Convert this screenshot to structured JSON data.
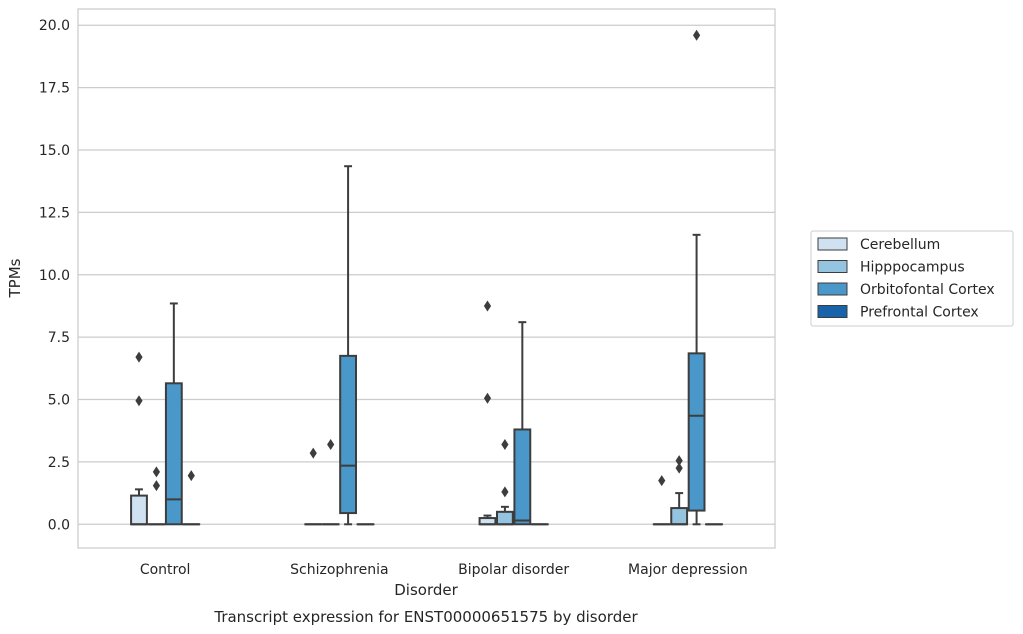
{
  "chart_data": {
    "type": "box",
    "title": "Transcript expression for ENST00000651575 by disorder",
    "xlabel": "Disorder",
    "ylabel": "TPMs",
    "ylim": [
      -0.95,
      20.65
    ],
    "yticks": [
      "0.0",
      "2.5",
      "5.0",
      "7.5",
      "10.0",
      "12.5",
      "15.0",
      "17.5",
      "20.0"
    ],
    "categories": [
      "Control",
      "Schizophrenia",
      "Bipolar disorder",
      "Major depression"
    ],
    "grid": "horizontal",
    "legend_position": "right",
    "series": [
      {
        "name": "Cerebellum",
        "color": "#d0e1f2",
        "boxes": [
          {
            "q1": 0.0,
            "median": 0.0,
            "q3": 1.15,
            "whislo": 0.0,
            "whishi": 1.4,
            "fliers": [
              6.7,
              4.95
            ]
          },
          {
            "q1": 0.0,
            "median": 0.0,
            "q3": 0.0,
            "whislo": 0.0,
            "whishi": 0.0,
            "fliers": [
              2.85
            ]
          },
          {
            "q1": 0.0,
            "median": 0.0,
            "q3": 0.25,
            "whislo": 0.0,
            "whishi": 0.35,
            "fliers": [
              8.75,
              5.05
            ]
          },
          {
            "q1": 0.0,
            "median": 0.0,
            "q3": 0.0,
            "whislo": 0.0,
            "whishi": 0.0,
            "fliers": [
              1.75
            ]
          }
        ]
      },
      {
        "name": "Hipppocampus",
        "color": "#94c4df",
        "boxes": [
          {
            "q1": 0.0,
            "median": 0.0,
            "q3": 0.0,
            "whislo": 0.0,
            "whishi": 0.0,
            "fliers": [
              2.1,
              1.55
            ]
          },
          {
            "q1": 0.0,
            "median": 0.0,
            "q3": 0.0,
            "whislo": 0.0,
            "whishi": 0.0,
            "fliers": [
              3.2
            ]
          },
          {
            "q1": 0.0,
            "median": 0.0,
            "q3": 0.5,
            "whislo": 0.0,
            "whishi": 0.7,
            "fliers": [
              3.2,
              1.3
            ]
          },
          {
            "q1": 0.0,
            "median": 0.0,
            "q3": 0.65,
            "whislo": 0.0,
            "whishi": 1.25,
            "fliers": [
              2.55,
              2.25
            ]
          }
        ]
      },
      {
        "name": "Orbitofontal Cortex",
        "color": "#4a98c9",
        "boxes": [
          {
            "q1": 0.0,
            "median": 1.0,
            "q3": 5.65,
            "whislo": 0.0,
            "whishi": 8.85,
            "fliers": []
          },
          {
            "q1": 0.45,
            "median": 2.35,
            "q3": 6.75,
            "whislo": 0.0,
            "whishi": 14.35,
            "fliers": []
          },
          {
            "q1": 0.0,
            "median": 0.15,
            "q3": 3.8,
            "whislo": 0.0,
            "whishi": 8.1,
            "fliers": []
          },
          {
            "q1": 0.55,
            "median": 4.35,
            "q3": 6.85,
            "whislo": 0.0,
            "whishi": 11.6,
            "fliers": [
              19.6
            ]
          }
        ]
      },
      {
        "name": "Prefrontal Cortex",
        "color": "#1764ab",
        "boxes": [
          {
            "q1": 0.0,
            "median": 0.0,
            "q3": 0.0,
            "whislo": 0.0,
            "whishi": 0.0,
            "fliers": [
              1.95
            ]
          },
          {
            "q1": 0.0,
            "median": 0.0,
            "q3": 0.0,
            "whislo": 0.0,
            "whishi": 0.0,
            "fliers": []
          },
          {
            "q1": 0.0,
            "median": 0.0,
            "q3": 0.0,
            "whislo": 0.0,
            "whishi": 0.0,
            "fliers": []
          },
          {
            "q1": 0.0,
            "median": 0.0,
            "q3": 0.0,
            "whislo": 0.0,
            "whishi": 0.0,
            "fliers": []
          }
        ]
      }
    ]
  }
}
